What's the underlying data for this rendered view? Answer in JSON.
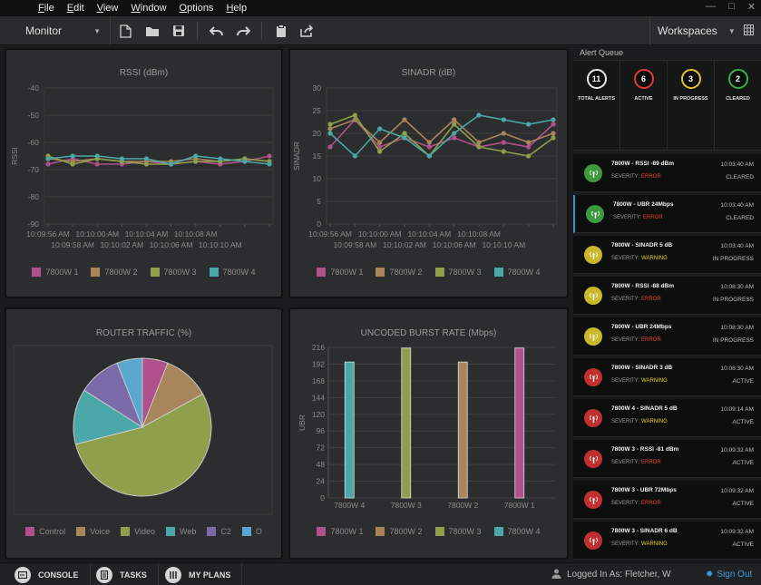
{
  "menu": [
    "File",
    "Edit",
    "View",
    "Window",
    "Options",
    "Help"
  ],
  "toolbar": {
    "mode": "Monitor",
    "workspace": "Workspaces"
  },
  "rssi": {
    "chart_data": {
      "type": "line",
      "title": "RSSI (dBm)",
      "ylabel": "RSSI",
      "ylim": [
        -90,
        -40
      ],
      "yticks": [
        -40,
        -50,
        -60,
        -70,
        -80,
        -90
      ],
      "x_ticks_upper": [
        "10:09:56 AM",
        "10:10:00 AM",
        "10:10:04 AM",
        "10:10:08 AM"
      ],
      "x_ticks_lower": [
        "10:09:58 AM",
        "10:10:02 AM",
        "10:10:06 AM",
        "10:10:10 AM"
      ],
      "series": [
        {
          "name": "7800W 1",
          "color": "#b0508c",
          "values": [
            -68,
            -66,
            -68,
            -68,
            -67,
            -68,
            -67,
            -68,
            -67,
            -65
          ]
        },
        {
          "name": "7800W 2",
          "color": "#a8855a",
          "values": [
            -66,
            -67,
            -66,
            -67,
            -67,
            -67,
            -66,
            -67,
            -66,
            -67
          ]
        },
        {
          "name": "7800W 3",
          "color": "#8fa04c",
          "values": [
            -65,
            -68,
            -66,
            -67,
            -68,
            -68,
            -67,
            -67,
            -66,
            -67
          ]
        },
        {
          "name": "7800W 4",
          "color": "#4aa8a8",
          "values": [
            -66,
            -65,
            -65,
            -66,
            -66,
            -68,
            -65,
            -66,
            -67,
            -68
          ]
        }
      ]
    }
  },
  "sinadr": {
    "chart_data": {
      "type": "line",
      "title": "SINADR (dB)",
      "ylabel": "SINADR",
      "ylim": [
        0,
        30
      ],
      "yticks": [
        30,
        25,
        20,
        15,
        10,
        5,
        0
      ],
      "x_ticks_upper": [
        "10:09:56 AM",
        "10:10:00 AM",
        "10:10:04 AM",
        "10:10:08 AM"
      ],
      "x_ticks_lower": [
        "10:09:58 AM",
        "10:10:02 AM",
        "10:10:06 AM",
        "10:10:10 AM"
      ],
      "series": [
        {
          "name": "7800W 1",
          "color": "#b0508c",
          "values": [
            17,
            23,
            17,
            19,
            17,
            19,
            17,
            18,
            17,
            22
          ]
        },
        {
          "name": "7800W 2",
          "color": "#a8855a",
          "values": [
            21,
            23,
            18,
            23,
            18,
            23,
            18,
            20,
            18,
            20
          ]
        },
        {
          "name": "7800W 3",
          "color": "#8fa04c",
          "values": [
            22,
            24,
            16,
            20,
            15,
            22,
            17,
            16,
            15,
            19
          ]
        },
        {
          "name": "7800W 4",
          "color": "#4aa8a8",
          "values": [
            20,
            15,
            21,
            19,
            15,
            20,
            24,
            23,
            22,
            23
          ]
        }
      ]
    }
  },
  "traffic": {
    "chart_data": {
      "type": "pie",
      "title": "ROUTER TRAFFIC (%)",
      "slices": [
        {
          "name": "Control",
          "value": 6,
          "color": "#b0508c"
        },
        {
          "name": "Voice",
          "value": 11,
          "color": "#a8855a"
        },
        {
          "name": "Video",
          "value": 54,
          "color": "#8fa04c"
        },
        {
          "name": "Web",
          "value": 13,
          "color": "#4aa8a8"
        },
        {
          "name": "C2",
          "value": 10,
          "color": "#7a6aa8"
        },
        {
          "name": "O",
          "value": 6,
          "color": "#5aa8d0"
        }
      ]
    }
  },
  "ubr": {
    "chart_data": {
      "type": "bar",
      "title": "UNCODED BURST RATE (Mbps)",
      "ylabel": "UBR",
      "ylim": [
        0,
        216
      ],
      "yticks": [
        216,
        192,
        168,
        144,
        120,
        96,
        72,
        48,
        24,
        0
      ],
      "categories": [
        "7800W 4",
        "7800W 3",
        "7800W 2",
        "7800W 1"
      ],
      "values": [
        195,
        215,
        195,
        215
      ],
      "colors": [
        "#4aa8a8",
        "#8fa04c",
        "#a8855a",
        "#b0508c"
      ]
    }
  },
  "line_legend": [
    {
      "name": "7800W 1",
      "color": "#b0508c"
    },
    {
      "name": "7800W 2",
      "color": "#a8855a"
    },
    {
      "name": "7800W 3",
      "color": "#8fa04c"
    },
    {
      "name": "7800W 4",
      "color": "#4aa8a8"
    }
  ],
  "alert_queue": {
    "title": "Alert Queue",
    "summary": [
      {
        "count": "11",
        "label": "TOTAL ALERTS",
        "color": "#e8e8e8"
      },
      {
        "count": "6",
        "label": "ACTIVE",
        "color": "#e03a3a"
      },
      {
        "count": "3",
        "label": "IN PROGRESS",
        "color": "#e0c23a"
      },
      {
        "count": "2",
        "label": "CLEARED",
        "color": "#3ab04a"
      }
    ],
    "sev_label": "SEVERITY:",
    "alerts": [
      {
        "title": "7800W - RSSI -89 dBm",
        "severity": "ERROR",
        "time": "10:03:40 AM",
        "status": "CLEARED",
        "color": "#3e9a3e"
      },
      {
        "title": "7800W - UBR 24Mbps",
        "severity": "ERROR",
        "time": "10:03:40 AM",
        "status": "CLEARED",
        "color": "#3e9a3e"
      },
      {
        "title": "7800W - SINADR 5 dB",
        "severity": "WARNING",
        "time": "10:03:40 AM",
        "status": "IN PROGRESS",
        "color": "#c8b82a"
      },
      {
        "title": "7800W - RSSI -88 dBm",
        "severity": "ERROR",
        "time": "10:08:30 AM",
        "status": "IN PROGRESS",
        "color": "#c8b82a"
      },
      {
        "title": "7800W - UBR 24Mbps",
        "severity": "ERROR",
        "time": "10:08:30 AM",
        "status": "IN PROGRESS",
        "color": "#c8b82a"
      },
      {
        "title": "7800W - SINADR 3 dB",
        "severity": "WARNING",
        "time": "10:08:30 AM",
        "status": "ACTIVE",
        "color": "#c03030"
      },
      {
        "title": "7800W 4 - SINADR 5 dB",
        "severity": "WARNING",
        "time": "10:09:14 AM",
        "status": "ACTIVE",
        "color": "#c03030"
      },
      {
        "title": "7800W 3 - RSSI -81 dBm",
        "severity": "ERROR",
        "time": "10:09:32 AM",
        "status": "ACTIVE",
        "color": "#c03030"
      },
      {
        "title": "7800W 3 - UBR 72Mbps",
        "severity": "ERROR",
        "time": "10:09:32 AM",
        "status": "ACTIVE",
        "color": "#c03030"
      },
      {
        "title": "7800W 3 - SINADR 6 dB",
        "severity": "WARNING",
        "time": "10:09:32 AM",
        "status": "ACTIVE",
        "color": "#c03030"
      },
      {
        "title": "7800W 2 - SINADR 6 dB",
        "severity": "WARNING",
        "time": "10:09:58 AM",
        "status": "ACTIVE",
        "color": "#c03030"
      }
    ]
  },
  "statusbar": {
    "console": "CONSOLE",
    "tasks": "TASKS",
    "plans": "MY PLANS",
    "user": "Logged In As: Fletcher, W",
    "signout": "Sign Out"
  },
  "colors": {
    "error": "#e8412c",
    "warning": "#e8d020",
    "accent": "#3d9be0"
  }
}
